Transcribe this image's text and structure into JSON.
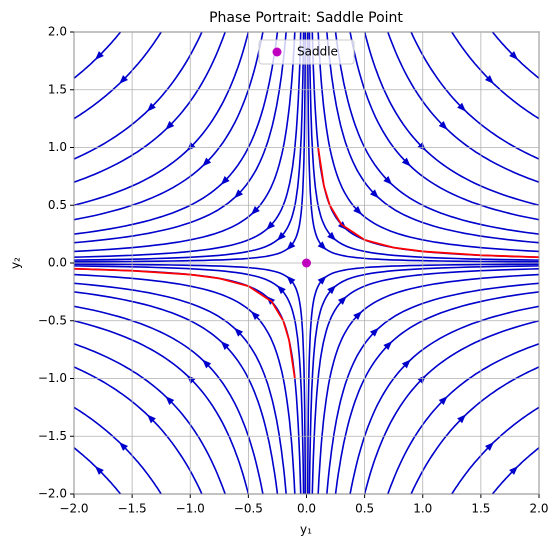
{
  "chart_data": {
    "type": "phase_portrait",
    "title": "Phase Portrait: Saddle Point",
    "xlabel": "y₁",
    "ylabel": "y₂",
    "xlim": [
      -2,
      2
    ],
    "ylim": [
      -2,
      2
    ],
    "xticks": [
      {
        "value": -2,
        "label": "−2.0"
      },
      {
        "value": -1.5,
        "label": "−1.5"
      },
      {
        "value": -1,
        "label": "−1.0"
      },
      {
        "value": -0.5,
        "label": "−0.5"
      },
      {
        "value": 0,
        "label": "0.0"
      },
      {
        "value": 0.5,
        "label": "0.5"
      },
      {
        "value": 1,
        "label": "1.0"
      },
      {
        "value": 1.5,
        "label": "1.5"
      },
      {
        "value": 2,
        "label": "2.0"
      }
    ],
    "yticks": [
      {
        "value": -2,
        "label": "−2.0"
      },
      {
        "value": -1.5,
        "label": "−1.5"
      },
      {
        "value": -1,
        "label": "−1.0"
      },
      {
        "value": -0.5,
        "label": "−0.5"
      },
      {
        "value": 0,
        "label": "0.0"
      },
      {
        "value": 0.5,
        "label": "0.5"
      },
      {
        "value": 1,
        "label": "1.0"
      },
      {
        "value": 1.5,
        "label": "1.5"
      },
      {
        "value": 2,
        "label": "2.0"
      }
    ],
    "grid": true,
    "streamline_color": "#0000cc",
    "streamline_products": [
      0.02,
      0.05,
      0.1,
      0.2,
      0.35,
      0.5,
      0.75,
      1.0,
      1.4,
      1.8,
      2.5,
      3.2
    ],
    "series": [
      {
        "name": "Saddle",
        "type": "scatter",
        "color": "#bf00bf",
        "x": [
          0
        ],
        "y": [
          0
        ]
      },
      {
        "type": "line",
        "color": "#ff0000",
        "x": [
          0.1,
          0.15,
          0.2,
          0.3,
          0.5,
          0.75,
          1,
          1.5,
          2
        ],
        "y": [
          1,
          0.667,
          0.5,
          0.333,
          0.2,
          0.133,
          0.1,
          0.067,
          0.05
        ]
      },
      {
        "type": "line",
        "color": "#ff0000",
        "x": [
          -0.1,
          -0.15,
          -0.2,
          -0.3,
          -0.5,
          -0.75,
          -1,
          -1.5,
          -2
        ],
        "y": [
          -1,
          -0.667,
          -0.5,
          -0.333,
          -0.2,
          -0.133,
          -0.1,
          -0.067,
          -0.05
        ]
      }
    ],
    "legend": "upper center"
  }
}
